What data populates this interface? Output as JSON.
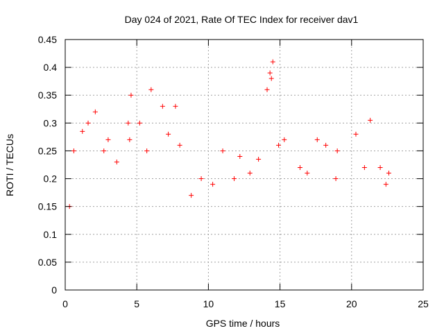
{
  "chart_data": {
    "type": "scatter",
    "title": "Day 024 of 2021, Rate Of TEC Index for receiver dav1",
    "xlabel": "GPS time / hours",
    "ylabel": "ROTI / TECUs",
    "xlim": [
      0,
      25
    ],
    "ylim": [
      0,
      0.45
    ],
    "xticks": [
      "0",
      "5",
      "10",
      "15",
      "20",
      "25"
    ],
    "yticks": [
      "0",
      "0.05",
      "0.1",
      "0.15",
      "0.2",
      "0.25",
      "0.3",
      "0.35",
      "0.4",
      "0.45"
    ],
    "grid": true,
    "marker": "+",
    "color": "#ff0000",
    "series": [
      {
        "x": [
          4.4,
          4.6,
          6.0,
          7.7,
          14.1,
          14.4,
          14.5,
          14.3,
          21.3,
          20.3,
          17.6,
          2.1,
          1.6,
          1.2,
          3.0,
          5.2,
          6.8,
          4.5,
          8.0,
          11.0,
          12.2,
          13.5,
          15.3,
          16.4,
          18.2,
          19.0,
          22.0,
          22.6,
          9.5,
          10.3,
          0.3,
          0.6,
          2.7,
          3.6,
          5.7,
          7.2,
          8.8,
          11.8,
          12.9,
          14.9,
          16.9,
          18.9,
          20.9,
          22.4
        ],
        "y": [
          0.3,
          0.35,
          0.36,
          0.33,
          0.36,
          0.38,
          0.41,
          0.39,
          0.305,
          0.28,
          0.27,
          0.32,
          0.3,
          0.285,
          0.27,
          0.3,
          0.33,
          0.27,
          0.26,
          0.25,
          0.24,
          0.235,
          0.27,
          0.22,
          0.26,
          0.25,
          0.22,
          0.21,
          0.2,
          0.19,
          0.15,
          0.25,
          0.25,
          0.23,
          0.25,
          0.28,
          0.17,
          0.2,
          0.21,
          0.26,
          0.21,
          0.2,
          0.22,
          0.19
        ]
      }
    ]
  }
}
